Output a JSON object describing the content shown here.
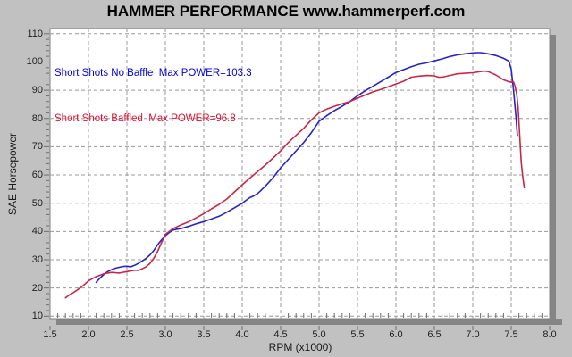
{
  "header": {
    "title": "HAMMER PERFORMANCE www.hammerperf.com"
  },
  "chart_data": {
    "type": "line",
    "title": "HAMMER PERFORMANCE www.hammerperf.com",
    "xlabel": "RPM (x1000)",
    "ylabel": "SAE Horsepower",
    "xlim": [
      1.5,
      8.0
    ],
    "ylim": [
      9,
      112
    ],
    "x_ticks": [
      "1.5",
      "2.0",
      "2.5",
      "3.0",
      "3.5",
      "4.0",
      "4.5",
      "5.0",
      "5.5",
      "6.0",
      "6.5",
      "7.0",
      "7.5",
      "8.0"
    ],
    "y_ticks": [
      "110",
      "100",
      "90",
      "80",
      "70",
      "60",
      "50",
      "40",
      "30",
      "20",
      "10"
    ],
    "grid": "dashed",
    "legend_position": "top-left-inside",
    "series": [
      {
        "name": "Short Shots No Baffle",
        "label": "Short Shots No Baffle  Max POWER=103.3",
        "max_power": 103.3,
        "color": "#2424c8",
        "label_color": "#0000dd",
        "points": [
          [
            2.1,
            22.0
          ],
          [
            2.15,
            23.5
          ],
          [
            2.2,
            24.8
          ],
          [
            2.25,
            25.8
          ],
          [
            2.3,
            26.5
          ],
          [
            2.35,
            27.0
          ],
          [
            2.4,
            27.3
          ],
          [
            2.45,
            27.6
          ],
          [
            2.5,
            27.7
          ],
          [
            2.55,
            27.5
          ],
          [
            2.6,
            28.0
          ],
          [
            2.65,
            28.7
          ],
          [
            2.7,
            29.6
          ],
          [
            2.75,
            30.5
          ],
          [
            2.8,
            31.7
          ],
          [
            2.85,
            33.3
          ],
          [
            2.9,
            35.3
          ],
          [
            2.95,
            37.0
          ],
          [
            3.0,
            38.5
          ],
          [
            3.05,
            39.6
          ],
          [
            3.1,
            40.5
          ],
          [
            3.15,
            40.8
          ],
          [
            3.2,
            41.0
          ],
          [
            3.3,
            41.8
          ],
          [
            3.4,
            42.7
          ],
          [
            3.5,
            43.5
          ],
          [
            3.6,
            44.4
          ],
          [
            3.7,
            45.4
          ],
          [
            3.8,
            46.8
          ],
          [
            3.9,
            48.4
          ],
          [
            4.0,
            50.0
          ],
          [
            4.05,
            51.0
          ],
          [
            4.1,
            52.0
          ],
          [
            4.15,
            52.6
          ],
          [
            4.2,
            53.4
          ],
          [
            4.3,
            56.0
          ],
          [
            4.35,
            57.5
          ],
          [
            4.4,
            59.0
          ],
          [
            4.5,
            62.5
          ],
          [
            4.6,
            65.5
          ],
          [
            4.7,
            68.5
          ],
          [
            4.8,
            71.5
          ],
          [
            4.9,
            75.0
          ],
          [
            5.0,
            79.0
          ],
          [
            5.1,
            81.0
          ],
          [
            5.2,
            82.8
          ],
          [
            5.3,
            84.3
          ],
          [
            5.4,
            86.0
          ],
          [
            5.5,
            88.0
          ],
          [
            5.6,
            89.8
          ],
          [
            5.7,
            91.4
          ],
          [
            5.8,
            93.0
          ],
          [
            5.9,
            94.6
          ],
          [
            6.0,
            96.3
          ],
          [
            6.1,
            97.3
          ],
          [
            6.2,
            98.3
          ],
          [
            6.3,
            99.2
          ],
          [
            6.4,
            99.7
          ],
          [
            6.5,
            100.4
          ],
          [
            6.6,
            101.1
          ],
          [
            6.7,
            101.9
          ],
          [
            6.8,
            102.5
          ],
          [
            6.9,
            102.9
          ],
          [
            7.0,
            103.2
          ],
          [
            7.05,
            103.3
          ],
          [
            7.1,
            103.3
          ],
          [
            7.2,
            102.9
          ],
          [
            7.3,
            102.3
          ],
          [
            7.4,
            101.3
          ],
          [
            7.47,
            100.3
          ],
          [
            7.5,
            97.5
          ],
          [
            7.53,
            90.0
          ],
          [
            7.56,
            81.0
          ],
          [
            7.58,
            74.0
          ]
        ]
      },
      {
        "name": "Short Shots Baffled",
        "label": "Short Shots Baffled  Max POWER=96.8",
        "max_power": 96.8,
        "color": "#c92747",
        "label_color": "#dd1133",
        "points": [
          [
            1.7,
            16.5
          ],
          [
            1.75,
            17.5
          ],
          [
            1.8,
            18.3
          ],
          [
            1.85,
            19.2
          ],
          [
            1.9,
            20.2
          ],
          [
            1.95,
            21.3
          ],
          [
            2.0,
            22.5
          ],
          [
            2.05,
            23.3
          ],
          [
            2.1,
            24.0
          ],
          [
            2.15,
            24.5
          ],
          [
            2.2,
            25.0
          ],
          [
            2.25,
            25.3
          ],
          [
            2.3,
            25.5
          ],
          [
            2.4,
            25.3
          ],
          [
            2.5,
            25.8
          ],
          [
            2.6,
            26.3
          ],
          [
            2.65,
            26.2
          ],
          [
            2.7,
            26.8
          ],
          [
            2.75,
            27.5
          ],
          [
            2.8,
            28.7
          ],
          [
            2.85,
            30.5
          ],
          [
            2.9,
            33.0
          ],
          [
            2.95,
            36.0
          ],
          [
            3.0,
            39.0
          ],
          [
            3.05,
            40.0
          ],
          [
            3.1,
            41.0
          ],
          [
            3.2,
            42.3
          ],
          [
            3.3,
            43.4
          ],
          [
            3.4,
            44.8
          ],
          [
            3.5,
            46.3
          ],
          [
            3.6,
            48.0
          ],
          [
            3.7,
            49.6
          ],
          [
            3.8,
            51.5
          ],
          [
            3.9,
            54.0
          ],
          [
            4.0,
            56.5
          ],
          [
            4.1,
            58.9
          ],
          [
            4.2,
            61.2
          ],
          [
            4.3,
            63.5
          ],
          [
            4.4,
            66.0
          ],
          [
            4.5,
            68.5
          ],
          [
            4.6,
            71.5
          ],
          [
            4.7,
            74.0
          ],
          [
            4.8,
            76.5
          ],
          [
            4.9,
            79.5
          ],
          [
            5.0,
            82.0
          ],
          [
            5.1,
            83.3
          ],
          [
            5.2,
            84.3
          ],
          [
            5.3,
            85.2
          ],
          [
            5.4,
            86.0
          ],
          [
            5.5,
            87.2
          ],
          [
            5.6,
            88.3
          ],
          [
            5.7,
            89.4
          ],
          [
            5.8,
            90.3
          ],
          [
            5.9,
            91.2
          ],
          [
            6.0,
            92.2
          ],
          [
            6.1,
            93.2
          ],
          [
            6.2,
            94.6
          ],
          [
            6.3,
            95.0
          ],
          [
            6.4,
            95.2
          ],
          [
            6.5,
            95.1
          ],
          [
            6.55,
            94.6
          ],
          [
            6.6,
            94.6
          ],
          [
            6.7,
            95.2
          ],
          [
            6.8,
            95.8
          ],
          [
            6.9,
            96.0
          ],
          [
            7.0,
            96.2
          ],
          [
            7.1,
            96.6
          ],
          [
            7.15,
            96.8
          ],
          [
            7.2,
            96.6
          ],
          [
            7.3,
            95.4
          ],
          [
            7.4,
            93.7
          ],
          [
            7.45,
            93.2
          ],
          [
            7.5,
            92.8
          ],
          [
            7.53,
            92.9
          ],
          [
            7.55,
            91.5
          ],
          [
            7.57,
            89.0
          ],
          [
            7.59,
            84.0
          ],
          [
            7.61,
            74.0
          ],
          [
            7.63,
            64.5
          ],
          [
            7.65,
            59.5
          ],
          [
            7.67,
            55.5
          ]
        ]
      }
    ]
  },
  "colors": {
    "page_background": "#c1c1c1",
    "plot_background": "#ffffff",
    "plot_border": "#808080",
    "plot_shadow": "#858585",
    "gridline": "#989898",
    "tick": "#6e6e6e",
    "tick_text": "#1f1f1f",
    "title_text": "#000000"
  }
}
